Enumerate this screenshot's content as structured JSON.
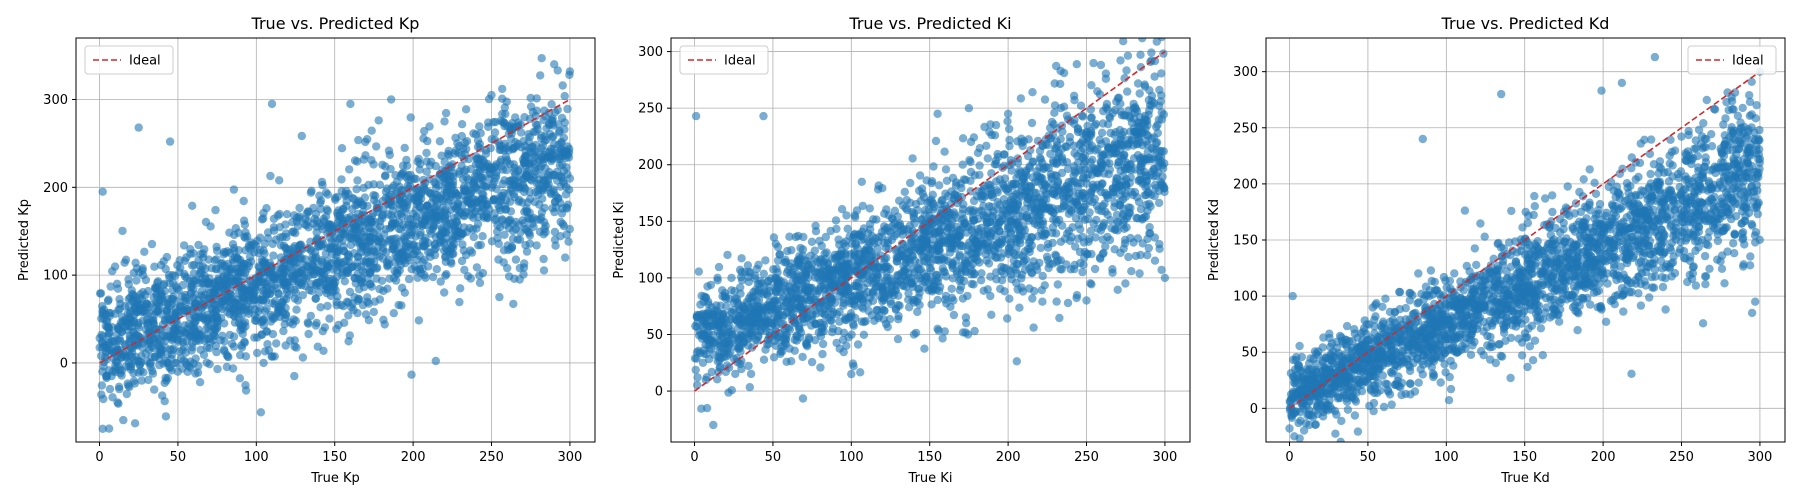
{
  "chart_data": [
    {
      "type": "scatter",
      "title": "True vs. Predicted Kp",
      "xlabel": "True Kp",
      "ylabel": "Predicted Kp",
      "xlim": [
        -15,
        316
      ],
      "ylim": [
        -90,
        370
      ],
      "xticks": [
        0,
        50,
        100,
        150,
        200,
        250,
        300
      ],
      "yticks": [
        0,
        100,
        200,
        300
      ],
      "grid": true,
      "legend": {
        "placement": "top-left",
        "entries": [
          "Ideal"
        ]
      },
      "ideal_line": {
        "name": "Ideal",
        "x": [
          0,
          300
        ],
        "y": [
          0,
          300
        ]
      },
      "sample_points": {
        "x": [
          2,
          25,
          45,
          110,
          160,
          186,
          220,
          250,
          282,
          290,
          300,
          297,
          268,
          255,
          230,
          260,
          2,
          1,
          300
        ],
        "y": [
          -75,
          268,
          252,
          295,
          295,
          300,
          275,
          305,
          347,
          340,
          332,
          120,
          95,
          75,
          85,
          108,
          195,
          8,
          210
        ]
      },
      "relationship": {
        "slope": 0.72,
        "intercept": 18,
        "spread_start": 35,
        "spread_end": 45
      }
    },
    {
      "type": "scatter",
      "title": "True vs. Predicted Ki",
      "xlabel": "True Ki",
      "ylabel": "Predicted Ki",
      "xlim": [
        -15,
        316
      ],
      "ylim": [
        -45,
        312
      ],
      "xticks": [
        0,
        50,
        100,
        150,
        200,
        250,
        300
      ],
      "yticks": [
        0,
        50,
        100,
        150,
        200,
        250,
        300
      ],
      "grid": true,
      "legend": {
        "placement": "top-left",
        "entries": [
          "Ideal"
        ]
      },
      "ideal_line": {
        "name": "Ideal",
        "x": [
          0,
          300
        ],
        "y": [
          0,
          300
        ]
      },
      "sample_points": {
        "x": [
          1,
          12,
          44,
          155,
          175,
          200,
          280,
          290,
          298,
          300,
          250,
          155,
          140,
          100,
          8
        ],
        "y": [
          243,
          -30,
          243,
          245,
          250,
          245,
          250,
          248,
          240,
          100,
          80,
          55,
          50,
          15,
          -15
        ]
      },
      "relationship": {
        "slope": 0.55,
        "intercept": 45,
        "spread_start": 20,
        "spread_end": 45
      }
    },
    {
      "type": "scatter",
      "title": "True vs. Predicted Kd",
      "xlabel": "True Kd",
      "ylabel": "Predicted Kd",
      "xlim": [
        -15,
        316
      ],
      "ylim": [
        -30,
        330
      ],
      "xticks": [
        0,
        50,
        100,
        150,
        200,
        250,
        300
      ],
      "yticks": [
        0,
        50,
        100,
        150,
        200,
        250,
        300
      ],
      "grid": true,
      "legend": {
        "placement": "top-right",
        "entries": [
          "Ideal"
        ]
      },
      "ideal_line": {
        "name": "Ideal",
        "x": [
          0,
          300
        ],
        "y": [
          0,
          300
        ]
      },
      "sample_points": {
        "x": [
          233,
          212,
          135,
          199,
          80,
          295,
          297,
          0,
          2,
          300,
          85
        ],
        "y": [
          313,
          290,
          280,
          283,
          15,
          85,
          95,
          -18,
          100,
          300,
          240
        ]
      },
      "relationship": {
        "slope": 0.68,
        "intercept": 8,
        "spread_start": 15,
        "spread_end": 35
      }
    }
  ],
  "style": {
    "point_color": "#1f77b4",
    "ideal_color": "#d62728",
    "grid_color": "#b0b0b0"
  }
}
